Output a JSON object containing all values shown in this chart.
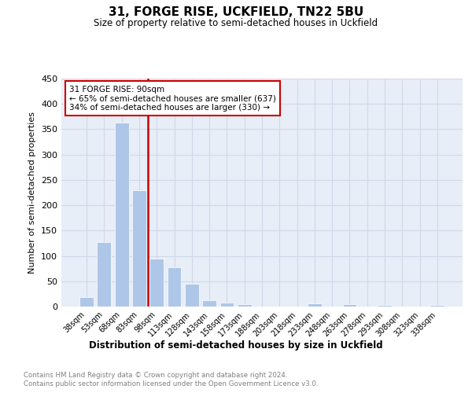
{
  "title": "31, FORGE RISE, UCKFIELD, TN22 5BU",
  "subtitle": "Size of property relative to semi-detached houses in Uckfield",
  "xlabel": "Distribution of semi-detached houses by size in Uckfield",
  "ylabel": "Number of semi-detached properties",
  "categories": [
    "38sqm",
    "53sqm",
    "68sqm",
    "83sqm",
    "98sqm",
    "113sqm",
    "128sqm",
    "143sqm",
    "158sqm",
    "173sqm",
    "188sqm",
    "203sqm",
    "218sqm",
    "233sqm",
    "248sqm",
    "263sqm",
    "278sqm",
    "293sqm",
    "308sqm",
    "323sqm",
    "338sqm"
  ],
  "values": [
    18,
    127,
    363,
    229,
    94,
    77,
    45,
    13,
    8,
    5,
    0,
    0,
    0,
    6,
    0,
    4,
    0,
    3,
    0,
    0,
    3
  ],
  "bar_color": "#aec6e8",
  "vline_color": "#cc0000",
  "annotation_title": "31 FORGE RISE: 90sqm",
  "annotation_line1": "← 65% of semi-detached houses are smaller (637)",
  "annotation_line2": "34% of semi-detached houses are larger (330) →",
  "annotation_box_color": "#ffffff",
  "annotation_box_edge_color": "#cc0000",
  "ylim": [
    0,
    450
  ],
  "yticks": [
    0,
    50,
    100,
    150,
    200,
    250,
    300,
    350,
    400,
    450
  ],
  "grid_color": "#d0d8e8",
  "background_color": "#e8eef8",
  "footer_line1": "Contains HM Land Registry data © Crown copyright and database right 2024.",
  "footer_line2": "Contains public sector information licensed under the Open Government Licence v3.0."
}
